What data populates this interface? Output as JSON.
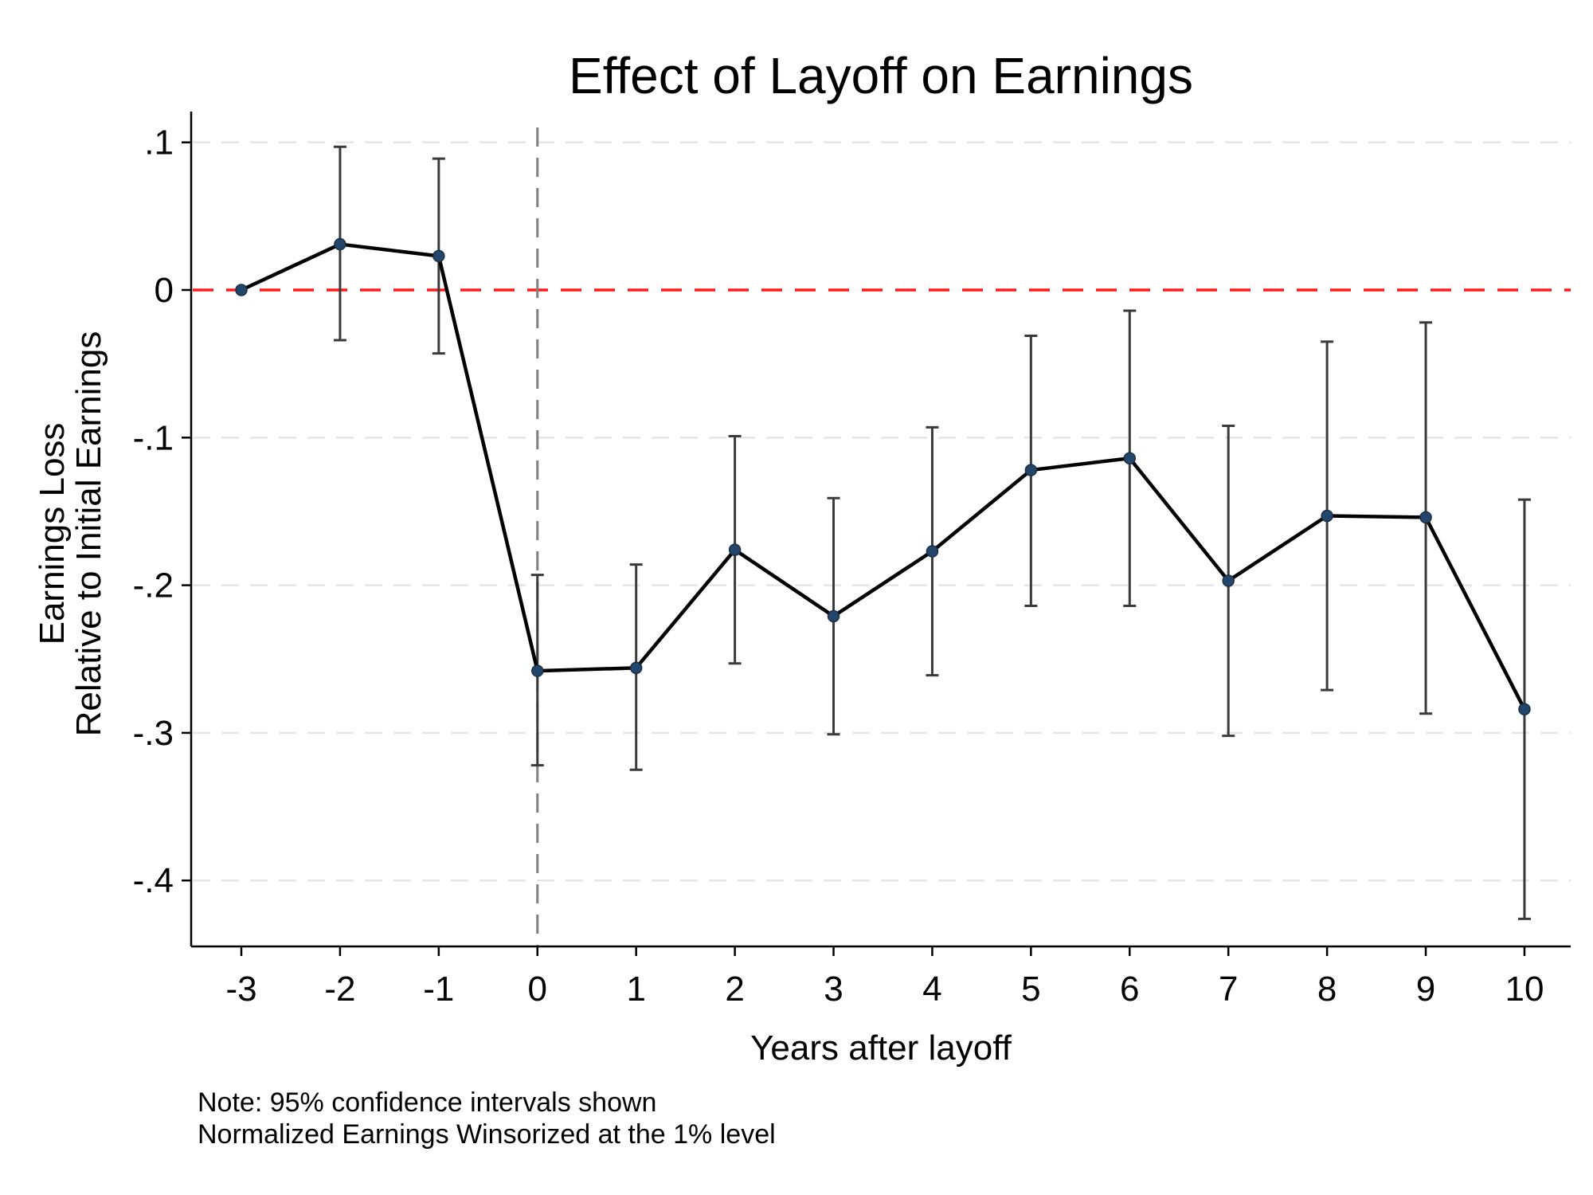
{
  "chart_data": {
    "type": "line",
    "title": "Effect of Layoff on Earnings",
    "xlabel": "Years after layoff",
    "ylabel": [
      "Earnings Loss",
      "Relative to Initial Earnings"
    ],
    "x": [
      -3,
      -2,
      -1,
      0,
      1,
      2,
      3,
      4,
      5,
      6,
      7,
      8,
      9,
      10
    ],
    "xticks": [
      -3,
      -2,
      -1,
      0,
      1,
      2,
      3,
      4,
      5,
      6,
      7,
      8,
      9,
      10
    ],
    "xtick_labels": [
      "-3",
      "-2",
      "-1",
      "0",
      "1",
      "2",
      "3",
      "4",
      "5",
      "6",
      "7",
      "8",
      "9",
      "10"
    ],
    "yticks": [
      0.1,
      0,
      -0.1,
      -0.2,
      -0.3,
      -0.4
    ],
    "ytick_labels": [
      ".1",
      "0",
      "-.1",
      "-.2",
      "-.3",
      "-.4"
    ],
    "xlim": [
      -3.5,
      10.5
    ],
    "ylim": [
      -0.445,
      0.11
    ],
    "series": [
      {
        "values": [
          0,
          0.031,
          0.023,
          -0.258,
          -0.256,
          -0.176,
          -0.221,
          -0.177,
          -0.122,
          -0.114,
          -0.197,
          -0.153,
          -0.154,
          -0.284
        ],
        "ci_upper": [
          0,
          0.097,
          0.089,
          -0.193,
          -0.186,
          -0.099,
          -0.141,
          -0.093,
          -0.031,
          -0.014,
          -0.092,
          -0.035,
          -0.022,
          -0.142
        ],
        "ci_lower": [
          0,
          -0.034,
          -0.043,
          -0.322,
          -0.325,
          -0.253,
          -0.301,
          -0.261,
          -0.214,
          -0.214,
          -0.302,
          -0.271,
          -0.287,
          -0.426
        ]
      }
    ],
    "reference_lines": {
      "horizontal_y": 0,
      "horizontal_color": "#ff1a1a",
      "vertical_x": 0,
      "vertical_color": "#808080"
    },
    "grid": "horizontal dashed",
    "colors": {
      "line": "#000000",
      "marker": "#24466b",
      "error_bar": "#3a3a3a",
      "gridline": "#e6e6e6"
    }
  },
  "notes": {
    "line1": "Note: 95% confidence intervals shown",
    "line2": "Normalized Earnings Winsorized at the 1% level"
  }
}
